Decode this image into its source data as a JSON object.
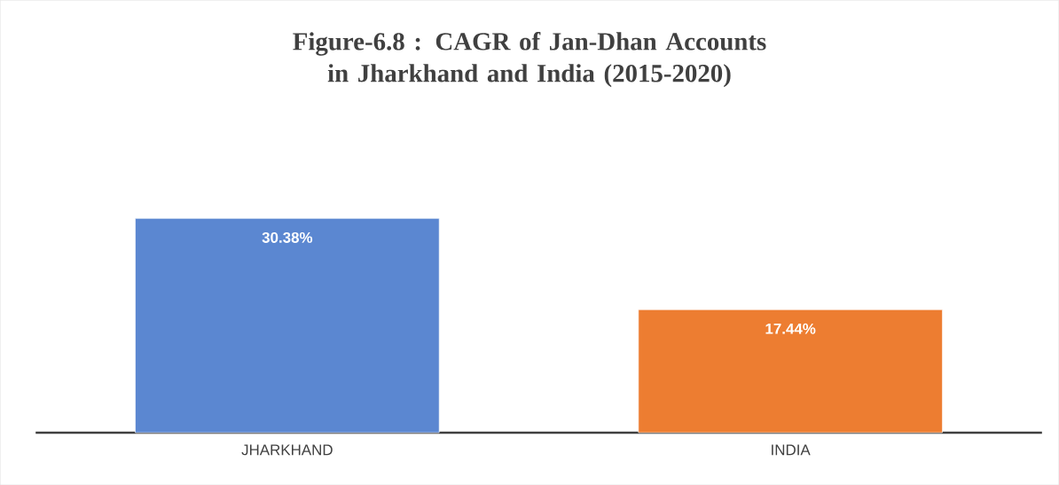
{
  "chart_data": {
    "type": "bar",
    "title": "Figure-6.8 : CAGR of Jan-Dhan Accounts in Jharkhand and India (2015-2020)",
    "categories": [
      "JHARKHAND",
      "INDIA"
    ],
    "values": [
      30.38,
      17.44
    ],
    "value_labels": [
      "30.38%",
      "17.44%"
    ],
    "colors": [
      "#5b87d1",
      "#ed7d31"
    ],
    "tick_labels": "x"
  }
}
